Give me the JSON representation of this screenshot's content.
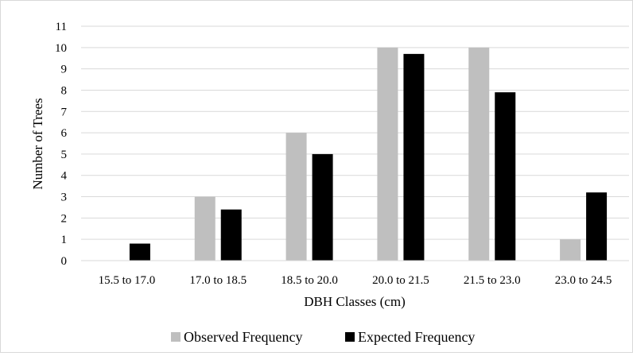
{
  "chart_data": {
    "type": "bar",
    "title": "",
    "xlabel": "DBH Classes (cm)",
    "ylabel": "Number of Trees",
    "ylim": [
      0,
      11
    ],
    "yticks": [
      0,
      1,
      2,
      3,
      4,
      5,
      6,
      7,
      8,
      9,
      10,
      11
    ],
    "grid": true,
    "legend_position": "bottom",
    "categories": [
      "15.5 to 17.0",
      "17.0 to 18.5",
      "18.5 to 20.0",
      "20.0 to 21.5",
      "21.5 to 23.0",
      "23.0 to 24.5"
    ],
    "series": [
      {
        "name": "Observed Frequency",
        "color": "#bfbfbf",
        "values": [
          0,
          3,
          6,
          10,
          10,
          1
        ]
      },
      {
        "name": "Expected Frequency",
        "color": "#000000",
        "values": [
          0.8,
          2.4,
          5.0,
          9.7,
          7.9,
          3.2
        ]
      }
    ]
  }
}
